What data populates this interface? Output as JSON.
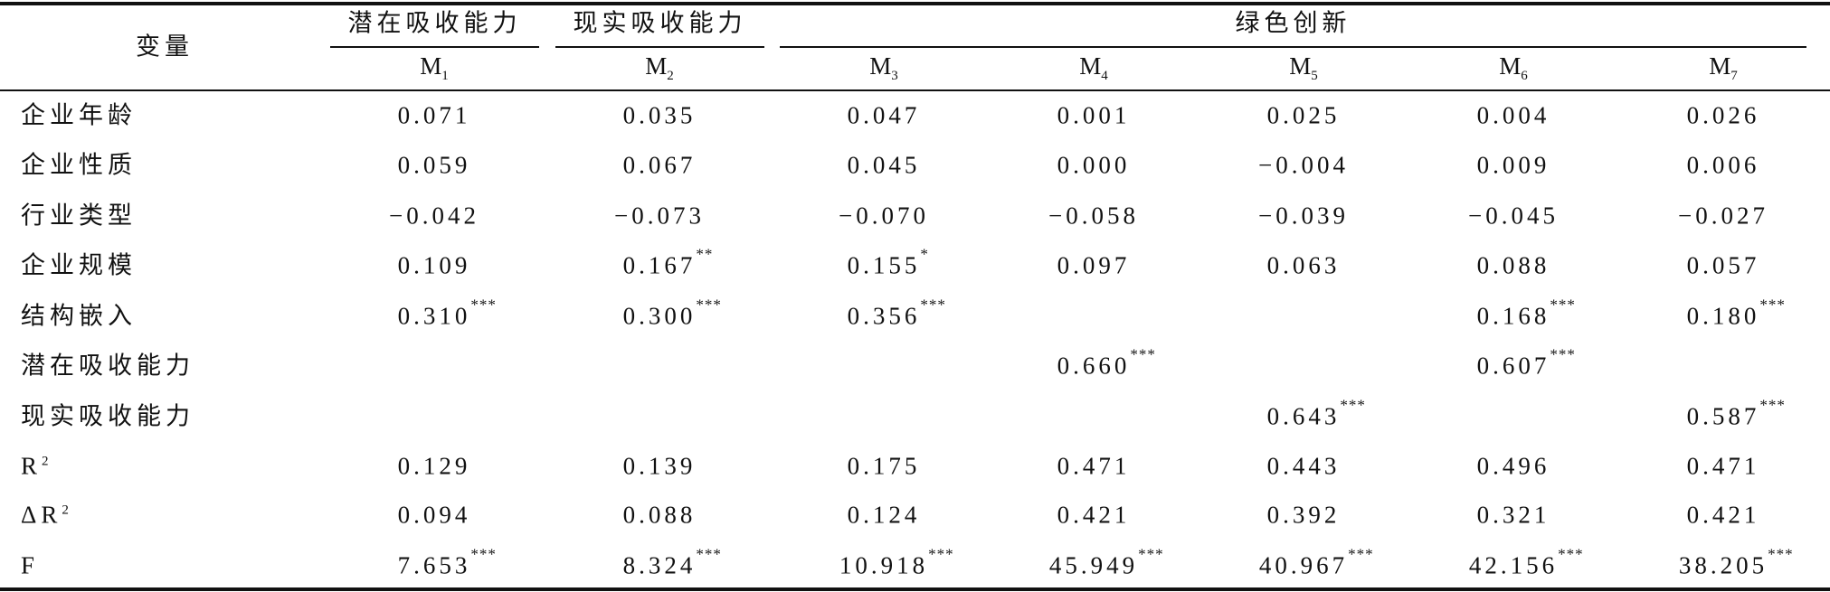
{
  "header": {
    "variable": "变量",
    "groups": [
      {
        "label": "潜在吸收能力"
      },
      {
        "label": "现实吸收能力"
      },
      {
        "label": "绿色创新"
      }
    ],
    "models": [
      {
        "base": "M",
        "sub": "1"
      },
      {
        "base": "M",
        "sub": "2"
      },
      {
        "base": "M",
        "sub": "3"
      },
      {
        "base": "M",
        "sub": "4"
      },
      {
        "base": "M",
        "sub": "5"
      },
      {
        "base": "M",
        "sub": "6"
      },
      {
        "base": "M",
        "sub": "7"
      }
    ]
  },
  "table": {
    "rows": [
      {
        "label": "企业年龄",
        "cells": [
          {
            "value": "0.071"
          },
          {
            "value": "0.035"
          },
          {
            "value": "0.047"
          },
          {
            "value": "0.001"
          },
          {
            "value": "0.025"
          },
          {
            "value": "0.004"
          },
          {
            "value": "0.026"
          }
        ]
      },
      {
        "label": "企业性质",
        "cells": [
          {
            "value": "0.059"
          },
          {
            "value": "0.067"
          },
          {
            "value": "0.045"
          },
          {
            "value": "0.000"
          },
          {
            "value": "−0.004"
          },
          {
            "value": "0.009"
          },
          {
            "value": "0.006"
          }
        ]
      },
      {
        "label": "行业类型",
        "cells": [
          {
            "value": "−0.042"
          },
          {
            "value": "−0.073"
          },
          {
            "value": "−0.070"
          },
          {
            "value": "−0.058"
          },
          {
            "value": "−0.039"
          },
          {
            "value": "−0.045"
          },
          {
            "value": "−0.027"
          }
        ]
      },
      {
        "label": "企业规模",
        "cells": [
          {
            "value": "0.109"
          },
          {
            "value": "0.167",
            "stars": "**"
          },
          {
            "value": "0.155",
            "stars": "*"
          },
          {
            "value": "0.097"
          },
          {
            "value": "0.063"
          },
          {
            "value": "0.088"
          },
          {
            "value": "0.057"
          }
        ]
      },
      {
        "label": "结构嵌入",
        "cells": [
          {
            "value": "0.310",
            "stars": "***"
          },
          {
            "value": "0.300",
            "stars": "***"
          },
          {
            "value": "0.356",
            "stars": "***"
          },
          null,
          null,
          {
            "value": "0.168",
            "stars": "***"
          },
          {
            "value": "0.180",
            "stars": "***"
          }
        ]
      },
      {
        "label": "潜在吸收能力",
        "cells": [
          null,
          null,
          null,
          {
            "value": "0.660",
            "stars": "***"
          },
          null,
          {
            "value": "0.607",
            "stars": "***"
          },
          null
        ]
      },
      {
        "label": "现实吸收能力",
        "cells": [
          null,
          null,
          null,
          null,
          {
            "value": "0.643",
            "stars": "***"
          },
          null,
          {
            "value": "0.587",
            "stars": "***"
          }
        ]
      },
      {
        "label": "R",
        "sup": "2",
        "cells": [
          {
            "value": "0.129"
          },
          {
            "value": "0.139"
          },
          {
            "value": "0.175"
          },
          {
            "value": "0.471"
          },
          {
            "value": "0.443"
          },
          {
            "value": "0.496"
          },
          {
            "value": "0.471"
          }
        ]
      },
      {
        "label": "ΔR",
        "sup": "2",
        "cells": [
          {
            "value": "0.094"
          },
          {
            "value": "0.088"
          },
          {
            "value": "0.124"
          },
          {
            "value": "0.421"
          },
          {
            "value": "0.392"
          },
          {
            "value": "0.321"
          },
          {
            "value": "0.421"
          }
        ]
      },
      {
        "label": "F",
        "cells": [
          {
            "value": "7.653",
            "stars": "***"
          },
          {
            "value": "8.324",
            "stars": "***"
          },
          {
            "value": "10.918",
            "stars": "***"
          },
          {
            "value": "45.949",
            "stars": "***"
          },
          {
            "value": "40.967",
            "stars": "***"
          },
          {
            "value": "42.156",
            "stars": "***"
          },
          {
            "value": "38.205",
            "stars": "***"
          }
        ]
      }
    ]
  }
}
